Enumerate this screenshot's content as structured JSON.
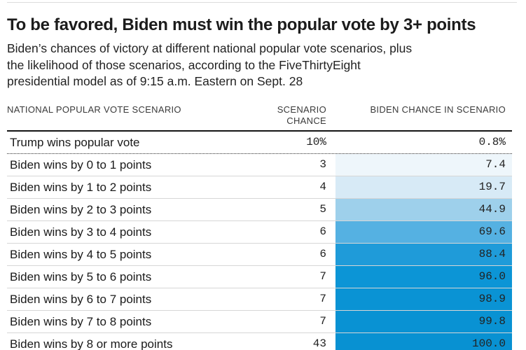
{
  "header": {
    "title": "To be favored, Biden must win the popular vote by 3+ points",
    "subtitle_lines": [
      "Biden’s chances of victory at different national popular vote scenarios, plus",
      "the likelihood of those scenarios, according to the FiveThirtyEight",
      "presidential model as of 9:15 a.m. Eastern on Sept. 28"
    ]
  },
  "table": {
    "columns": [
      "NATIONAL POPULAR VOTE SCENARIO",
      "SCENARIO CHANCE",
      "BIDEN CHANCE IN SCENARIO"
    ],
    "rows": [
      {
        "scenario": "Trump wins popular vote",
        "chance": "10%",
        "biden_chance": "0.8%",
        "cell_bg": ""
      },
      {
        "scenario": "Biden wins by 0 to 1 points",
        "chance": "3",
        "biden_chance": "7.4",
        "cell_bg": "#eef6fb",
        "divider_before": "dotted"
      },
      {
        "scenario": "Biden wins by 1 to 2 points",
        "chance": "4",
        "biden_chance": "19.7",
        "cell_bg": "#d7eaf6"
      },
      {
        "scenario": "Biden wins by 2 to 3 points",
        "chance": "5",
        "biden_chance": "44.9",
        "cell_bg": "#9ed0eb"
      },
      {
        "scenario": "Biden wins by 3 to 4 points",
        "chance": "6",
        "biden_chance": "69.6",
        "cell_bg": "#55b1e2"
      },
      {
        "scenario": "Biden wins by 4 to 5 points",
        "chance": "6",
        "biden_chance": "88.4",
        "cell_bg": "#1f9bd9"
      },
      {
        "scenario": "Biden wins by 5 to 6 points",
        "chance": "7",
        "biden_chance": "96.0",
        "cell_bg": "#0c95d6"
      },
      {
        "scenario": "Biden wins by 6 to 7 points",
        "chance": "7",
        "biden_chance": "98.9",
        "cell_bg": "#0a93d4"
      },
      {
        "scenario": "Biden wins by 7 to 8 points",
        "chance": "7",
        "biden_chance": "99.8",
        "cell_bg": "#0992d3"
      },
      {
        "scenario": "Biden wins by 8 or more points",
        "chance": "43",
        "biden_chance": "100.0",
        "cell_bg": "#0891d2"
      }
    ]
  },
  "colors": {
    "title_text": "#1c1c1c",
    "body_text": "#222222",
    "header_rule": "#141414",
    "row_rule": "#d6d6d6",
    "top_rule": "#dcdcdc",
    "heat_min": "#eef6fb",
    "heat_max": "#0891d2"
  },
  "chart_data": {
    "type": "table",
    "title": "To be favored, Biden must win the popular vote by 3+ points",
    "subtitle": "Biden’s chances of victory at different national popular vote scenarios, plus the likelihood of those scenarios, according to the FiveThirtyEight presidential model as of 9:15 a.m. Eastern on Sept. 28",
    "columns": [
      "NATIONAL POPULAR VOTE SCENARIO",
      "SCENARIO CHANCE",
      "BIDEN CHANCE IN SCENARIO"
    ],
    "categories": [
      "Trump wins popular vote",
      "Biden wins by 0 to 1 points",
      "Biden wins by 1 to 2 points",
      "Biden wins by 2 to 3 points",
      "Biden wins by 3 to 4 points",
      "Biden wins by 4 to 5 points",
      "Biden wins by 5 to 6 points",
      "Biden wins by 6 to 7 points",
      "Biden wins by 7 to 8 points",
      "Biden wins by 8 or more points"
    ],
    "series": [
      {
        "name": "Scenario chance (%)",
        "values": [
          10,
          3,
          4,
          5,
          6,
          6,
          7,
          7,
          7,
          43
        ]
      },
      {
        "name": "Biden chance in scenario (%)",
        "values": [
          0.8,
          7.4,
          19.7,
          44.9,
          69.6,
          88.4,
          96.0,
          98.9,
          99.8,
          100.0
        ]
      }
    ],
    "layout_hints": {
      "heatmap_column": "Biden chance in scenario (%)",
      "heatmap_scale": [
        "#ffffff",
        "#0891d2"
      ],
      "dotted_divider_after_row": 0
    }
  }
}
